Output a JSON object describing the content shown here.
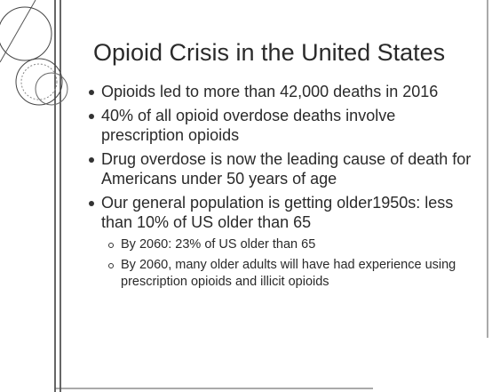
{
  "slide": {
    "title": "Opioid Crisis in the United States",
    "bullets": [
      "Opioids led to more than 42,000 deaths in 2016",
      "40% of all opioid overdose deaths involve prescription opioids",
      "Drug overdose is now the leading cause of death for Americans under 50 years of age",
      "Our general population is getting older1950s: less than 10% of US older than 65"
    ],
    "sub_bullets": [
      "By 2060: 23% of US older than 65",
      "By 2060, many older adults will have had experience using prescription opioids and illicit opioids"
    ]
  }
}
